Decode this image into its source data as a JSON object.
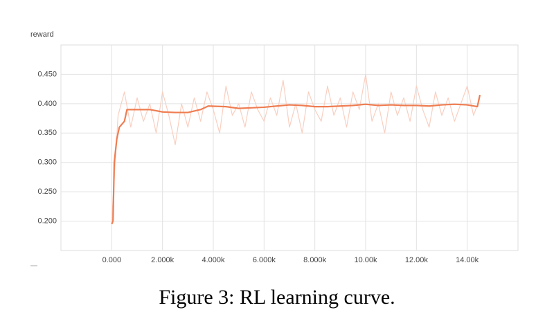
{
  "chart_data": {
    "type": "line",
    "y_label": "reward",
    "caption": "Figure 3: RL learning curve.",
    "xlim": [
      -2000,
      16000
    ],
    "ylim": [
      0.15,
      0.5
    ],
    "grid": true,
    "xticks": [
      {
        "value": 0,
        "label": "0.000"
      },
      {
        "value": 2000,
        "label": "2.000k"
      },
      {
        "value": 4000,
        "label": "4.000k"
      },
      {
        "value": 6000,
        "label": "6.000k"
      },
      {
        "value": 8000,
        "label": "8.000k"
      },
      {
        "value": 10000,
        "label": "10.00k"
      },
      {
        "value": 12000,
        "label": "12.00k"
      },
      {
        "value": 14000,
        "label": "14.00k"
      }
    ],
    "yticks": [
      {
        "value": 0.2,
        "label": "0.200"
      },
      {
        "value": 0.25,
        "label": "0.250"
      },
      {
        "value": 0.3,
        "label": "0.300"
      },
      {
        "value": 0.35,
        "label": "0.350"
      },
      {
        "value": 0.4,
        "label": "0.400"
      },
      {
        "value": 0.45,
        "label": "0.450"
      }
    ],
    "series": [
      {
        "color": "#f9cfc0",
        "x": [
          0,
          250,
          500,
          750,
          1000,
          1250,
          1500,
          1750,
          2000,
          2250,
          2500,
          2750,
          3000,
          3250,
          3500,
          3750,
          4000,
          4250,
          4500,
          4750,
          5000,
          5250,
          5500,
          5750,
          6000,
          6250,
          6500,
          6750,
          7000,
          7250,
          7500,
          7750,
          8000,
          8250,
          8500,
          8750,
          9000,
          9250,
          9500,
          9750,
          10000,
          10250,
          10500,
          10750,
          11000,
          11250,
          11500,
          11750,
          12000,
          12250,
          12500,
          12750,
          13000,
          13250,
          13500,
          13750,
          14000,
          14250,
          14500
        ],
        "values": [
          0.2,
          0.38,
          0.42,
          0.36,
          0.41,
          0.37,
          0.4,
          0.35,
          0.42,
          0.38,
          0.33,
          0.4,
          0.36,
          0.41,
          0.37,
          0.42,
          0.39,
          0.35,
          0.43,
          0.38,
          0.4,
          0.36,
          0.42,
          0.39,
          0.37,
          0.41,
          0.38,
          0.44,
          0.36,
          0.4,
          0.35,
          0.42,
          0.39,
          0.37,
          0.43,
          0.38,
          0.41,
          0.36,
          0.42,
          0.39,
          0.45,
          0.37,
          0.4,
          0.35,
          0.42,
          0.38,
          0.41,
          0.37,
          0.43,
          0.39,
          0.36,
          0.42,
          0.38,
          0.41,
          0.37,
          0.4,
          0.43,
          0.38,
          0.41
        ]
      },
      {
        "color": "#ef7d52",
        "x": [
          0,
          50,
          100,
          200,
          300,
          500,
          600,
          1000,
          1500,
          2000,
          2500,
          3000,
          3500,
          3800,
          4500,
          5000,
          5500,
          6000,
          6500,
          7000,
          7500,
          8000,
          8500,
          9000,
          9500,
          10000,
          10500,
          11000,
          11500,
          12000,
          12500,
          13000,
          13500,
          14000,
          14400,
          14500
        ],
        "values": [
          0.195,
          0.2,
          0.3,
          0.34,
          0.36,
          0.37,
          0.39,
          0.39,
          0.39,
          0.386,
          0.385,
          0.385,
          0.39,
          0.396,
          0.395,
          0.392,
          0.393,
          0.394,
          0.396,
          0.398,
          0.397,
          0.395,
          0.395,
          0.396,
          0.397,
          0.399,
          0.397,
          0.398,
          0.397,
          0.397,
          0.396,
          0.398,
          0.399,
          0.398,
          0.395,
          0.415
        ]
      }
    ]
  }
}
